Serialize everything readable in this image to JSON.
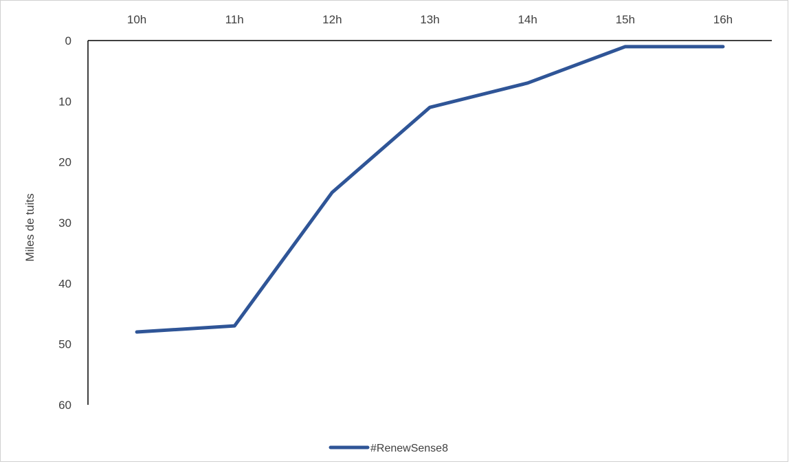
{
  "chart_data": {
    "type": "line",
    "title": "",
    "xlabel": "",
    "ylabel": "Miles de tuits",
    "categories": [
      "10h",
      "11h",
      "12h",
      "13h",
      "14h",
      "15h",
      "16h"
    ],
    "yticks": [
      "0",
      "10",
      "20",
      "30",
      "40",
      "50",
      "60"
    ],
    "ylim": [
      0,
      60
    ],
    "y_inverted": true,
    "x_axis_position": "top",
    "grid": false,
    "legend_position": "bottom",
    "series": [
      {
        "name": "#RenewSense8",
        "color": "#2F5597",
        "values": [
          48,
          47,
          25,
          11,
          7,
          1,
          1
        ]
      }
    ]
  }
}
